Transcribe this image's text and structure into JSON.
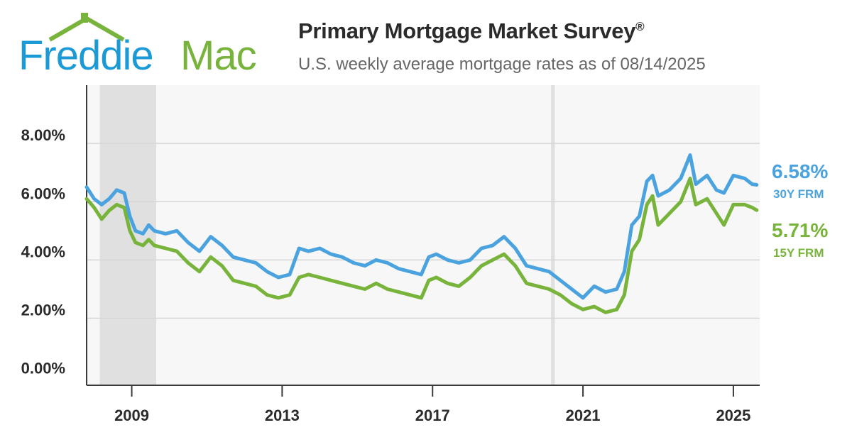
{
  "brand": {
    "word1": "Freddie",
    "word2": "Mac",
    "color_blue": "#1c9ad6",
    "color_green": "#78b43c",
    "logo_icon": "house-roof-icon"
  },
  "header": {
    "title": "Primary Mortgage Market Survey",
    "title_mark": "®",
    "subtitle": "U.S. weekly average mortgage rates as of 08/14/2025"
  },
  "chart_data": {
    "type": "line",
    "title": "Primary Mortgage Market Survey®",
    "subtitle": "U.S. weekly average mortgage rates as of 08/14/2025",
    "xlabel": "",
    "ylabel": "",
    "xlim": [
      2007.8,
      2025.7
    ],
    "ylim": [
      -0.3,
      10.0
    ],
    "yticks": [
      {
        "value": 0,
        "label": "0.00%"
      },
      {
        "value": 2,
        "label": "2.00%"
      },
      {
        "value": 4,
        "label": "4.00%"
      },
      {
        "value": 6,
        "label": "6.00%"
      },
      {
        "value": 8,
        "label": "8.00%"
      }
    ],
    "xticks": [
      {
        "value": 2009.0,
        "label": "2009"
      },
      {
        "value": 2013.0,
        "label": "2013"
      },
      {
        "value": 2017.0,
        "label": "2017"
      },
      {
        "value": 2021.0,
        "label": "2021"
      },
      {
        "value": 2025.0,
        "label": "2025"
      }
    ],
    "grid": true,
    "legend": "right end labels",
    "recession_bands": [
      {
        "start": 2008.15,
        "end": 2009.65
      },
      {
        "start": 2020.15,
        "end": 2020.25
      }
    ],
    "background_color": "#f7f7f7",
    "recession_color": "#e0e0e0",
    "series": [
      {
        "name": "30Y FRM",
        "color": "#4aa3df",
        "end_value_label": "6.58%",
        "end_name_label": "30Y FRM",
        "x": [
          2007.8,
          2008.0,
          2008.2,
          2008.4,
          2008.6,
          2008.8,
          2008.95,
          2009.1,
          2009.3,
          2009.45,
          2009.6,
          2009.9,
          2010.2,
          2010.5,
          2010.8,
          2011.1,
          2011.4,
          2011.7,
          2012.0,
          2012.3,
          2012.6,
          2012.9,
          2013.2,
          2013.45,
          2013.7,
          2014.0,
          2014.3,
          2014.6,
          2014.9,
          2015.2,
          2015.5,
          2015.8,
          2016.1,
          2016.4,
          2016.7,
          2016.9,
          2017.1,
          2017.4,
          2017.7,
          2018.0,
          2018.3,
          2018.6,
          2018.9,
          2019.2,
          2019.5,
          2019.8,
          2020.1,
          2020.4,
          2020.7,
          2021.0,
          2021.3,
          2021.6,
          2021.9,
          2022.1,
          2022.3,
          2022.5,
          2022.7,
          2022.85,
          2023.0,
          2023.3,
          2023.6,
          2023.85,
          2024.0,
          2024.3,
          2024.55,
          2024.75,
          2025.0,
          2025.3,
          2025.5,
          2025.62
        ],
        "values": [
          6.5,
          6.1,
          5.9,
          6.1,
          6.4,
          6.3,
          5.5,
          5.0,
          4.9,
          5.2,
          5.0,
          4.9,
          5.0,
          4.6,
          4.3,
          4.8,
          4.5,
          4.1,
          4.0,
          3.9,
          3.6,
          3.4,
          3.5,
          4.4,
          4.3,
          4.4,
          4.2,
          4.1,
          3.9,
          3.8,
          4.0,
          3.9,
          3.7,
          3.6,
          3.5,
          4.1,
          4.2,
          4.0,
          3.9,
          4.0,
          4.4,
          4.5,
          4.8,
          4.4,
          3.8,
          3.7,
          3.6,
          3.3,
          3.0,
          2.7,
          3.1,
          2.9,
          3.0,
          3.6,
          5.2,
          5.5,
          6.7,
          6.9,
          6.2,
          6.4,
          6.8,
          7.6,
          6.6,
          6.9,
          6.4,
          6.3,
          6.9,
          6.8,
          6.6,
          6.58
        ]
      },
      {
        "name": "15Y FRM",
        "color": "#78b43c",
        "end_value_label": "5.71%",
        "end_name_label": "15Y FRM",
        "x": [
          2007.8,
          2008.0,
          2008.2,
          2008.4,
          2008.6,
          2008.8,
          2008.95,
          2009.1,
          2009.3,
          2009.45,
          2009.6,
          2009.9,
          2010.2,
          2010.5,
          2010.8,
          2011.1,
          2011.4,
          2011.7,
          2012.0,
          2012.3,
          2012.6,
          2012.9,
          2013.2,
          2013.45,
          2013.7,
          2014.0,
          2014.3,
          2014.6,
          2014.9,
          2015.2,
          2015.5,
          2015.8,
          2016.1,
          2016.4,
          2016.7,
          2016.9,
          2017.1,
          2017.4,
          2017.7,
          2018.0,
          2018.3,
          2018.6,
          2018.9,
          2019.2,
          2019.5,
          2019.8,
          2020.1,
          2020.4,
          2020.7,
          2021.0,
          2021.3,
          2021.6,
          2021.9,
          2022.1,
          2022.3,
          2022.5,
          2022.7,
          2022.85,
          2023.0,
          2023.3,
          2023.6,
          2023.85,
          2024.0,
          2024.3,
          2024.55,
          2024.75,
          2025.0,
          2025.3,
          2025.5,
          2025.62
        ],
        "values": [
          6.1,
          5.8,
          5.4,
          5.7,
          5.9,
          5.8,
          5.0,
          4.6,
          4.5,
          4.7,
          4.5,
          4.4,
          4.3,
          3.9,
          3.6,
          4.1,
          3.8,
          3.3,
          3.2,
          3.1,
          2.8,
          2.7,
          2.8,
          3.4,
          3.5,
          3.4,
          3.3,
          3.2,
          3.1,
          3.0,
          3.2,
          3.0,
          2.9,
          2.8,
          2.7,
          3.3,
          3.4,
          3.2,
          3.1,
          3.4,
          3.8,
          4.0,
          4.2,
          3.8,
          3.2,
          3.1,
          3.0,
          2.8,
          2.5,
          2.3,
          2.4,
          2.2,
          2.3,
          2.8,
          4.3,
          4.7,
          5.9,
          6.2,
          5.2,
          5.6,
          6.0,
          6.8,
          5.9,
          6.1,
          5.6,
          5.2,
          5.9,
          5.9,
          5.8,
          5.71
        ]
      }
    ]
  }
}
